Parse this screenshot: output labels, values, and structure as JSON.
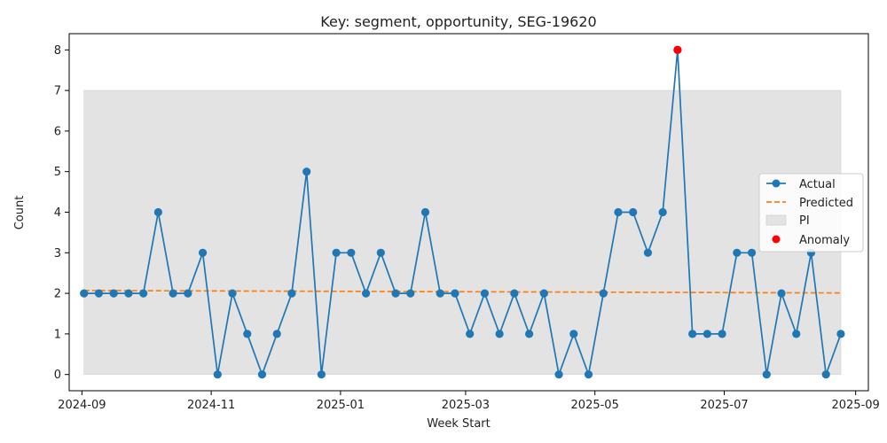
{
  "chart_data": {
    "type": "line",
    "title": "Key: segment, opportunity, SEG-19620",
    "xlabel": "Week Start",
    "ylabel": "Count",
    "ylim": [
      -0.4,
      8.4
    ],
    "xlim": [
      "2024-08-26",
      "2025-09-07"
    ],
    "x_ticks": [
      "2024-09",
      "2024-11",
      "2025-01",
      "2025-03",
      "2025-05",
      "2025-07",
      "2025-09"
    ],
    "x_tick_dates": [
      "2024-09-01",
      "2024-11-01",
      "2025-01-01",
      "2025-03-01",
      "2025-05-01",
      "2025-07-01",
      "2025-09-01"
    ],
    "y_ticks": [
      0,
      1,
      2,
      3,
      4,
      5,
      6,
      7,
      8
    ],
    "grid": false,
    "legend_position": "center-right",
    "colors": {
      "actual": "#1f77b4",
      "predicted": "#ff7f0e",
      "pi": "#e3e3e3",
      "anomaly": "#ff0000"
    },
    "x": [
      "2024-09-02",
      "2024-09-09",
      "2024-09-16",
      "2024-09-23",
      "2024-09-30",
      "2024-10-07",
      "2024-10-14",
      "2024-10-21",
      "2024-10-28",
      "2024-11-04",
      "2024-11-11",
      "2024-11-18",
      "2024-11-25",
      "2024-12-02",
      "2024-12-09",
      "2024-12-16",
      "2024-12-23",
      "2024-12-30",
      "2025-01-06",
      "2025-01-13",
      "2025-01-20",
      "2025-01-27",
      "2025-02-03",
      "2025-02-10",
      "2025-02-17",
      "2025-02-24",
      "2025-03-03",
      "2025-03-10",
      "2025-03-17",
      "2025-03-24",
      "2025-03-31",
      "2025-04-07",
      "2025-04-14",
      "2025-04-21",
      "2025-04-28",
      "2025-05-05",
      "2025-05-12",
      "2025-05-19",
      "2025-05-26",
      "2025-06-02",
      "2025-06-09",
      "2025-06-16",
      "2025-06-23",
      "2025-06-30",
      "2025-07-07",
      "2025-07-14",
      "2025-07-21",
      "2025-07-28",
      "2025-08-04",
      "2025-08-11",
      "2025-08-18",
      "2025-08-25"
    ],
    "series": [
      {
        "name": "Actual",
        "values": [
          2,
          2,
          2,
          2,
          2,
          4,
          2,
          2,
          3,
          0,
          2,
          1,
          0,
          1,
          2,
          5,
          0,
          3,
          3,
          2,
          3,
          2,
          2,
          4,
          2,
          2,
          1,
          2,
          1,
          2,
          1,
          2,
          0,
          1,
          0,
          2,
          4,
          4,
          3,
          4,
          8,
          1,
          1,
          1,
          3,
          3,
          0,
          2,
          1,
          3,
          0,
          1
        ]
      },
      {
        "name": "Predicted",
        "start": 2.07,
        "end": 2.01
      }
    ],
    "prediction_interval": {
      "name": "PI",
      "lower": 0,
      "upper": 7
    },
    "anomalies": [
      {
        "name": "Anomaly",
        "x": "2025-06-09",
        "y": 8
      }
    ]
  }
}
